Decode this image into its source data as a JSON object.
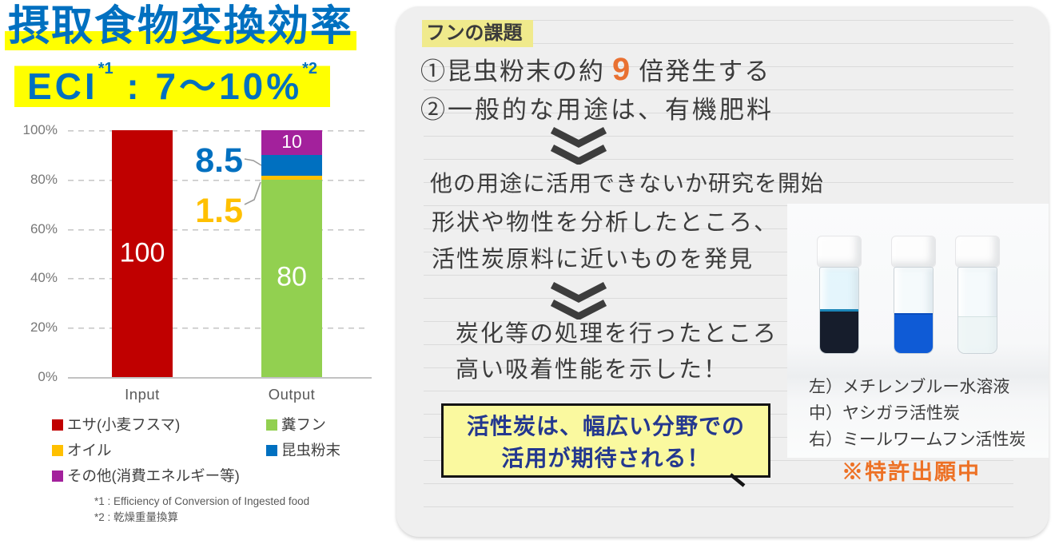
{
  "chart_data": {
    "type": "bar",
    "stacked": true,
    "title": "摂取食物変換効率",
    "subtitle": {
      "prefix": "ECI",
      "sup1": "*1",
      "sep": " : ",
      "range": "7～10%",
      "sup2": "*2"
    },
    "categories": [
      "Input",
      "Output"
    ],
    "series": [
      {
        "name": "エサ(小麦フスマ)",
        "color": "#C00000",
        "values": [
          100,
          0
        ]
      },
      {
        "name": "糞フン",
        "color": "#92D050",
        "values": [
          0,
          80
        ]
      },
      {
        "name": "オイル",
        "color": "#FFC000",
        "values": [
          0,
          1.5
        ]
      },
      {
        "name": "昆虫粉末",
        "color": "#0070C0",
        "values": [
          0,
          8.5
        ]
      },
      {
        "name": "その他(消費エネルギー等)",
        "color": "#A3219C",
        "values": [
          0,
          10
        ]
      }
    ],
    "ylim": [
      0,
      100
    ],
    "yticks": [
      "100%",
      "80%",
      "60%",
      "40%",
      "20%",
      "0%"
    ],
    "grid": "dashed horizontal",
    "legend_position": "bottom-two-columns",
    "bar_value_labels": [
      "100",
      "80",
      "10"
    ],
    "callout_labels": [
      "8.5",
      "1.5"
    ]
  },
  "legend": {
    "col1": [
      {
        "label": "エサ(小麦フスマ)",
        "color": "#C00000"
      },
      {
        "label": "オイル",
        "color": "#FFC000"
      },
      {
        "label": "その他(消費エネルギー等)",
        "color": "#A3219C"
      }
    ],
    "col2": [
      {
        "label": "糞フン",
        "color": "#92D050"
      },
      {
        "label": "昆虫粉末",
        "color": "#0070C0"
      }
    ]
  },
  "footnotes": [
    "*1 : Efficiency of Conversion of Ingested food",
    "*2 : 乾燥重量換算"
  ],
  "panel": {
    "heading": "フンの課題",
    "point1_pre": "①昆虫粉末の約",
    "point1_num": "9",
    "point1_post": "倍発生する",
    "point2": "②一般的な用途は、有機肥料",
    "step1": "他の用途に活用できないか研究を開始",
    "step2a": "形状や物性を分析したところ、",
    "step2b": "活性炭原料に近いものを発見",
    "step3a": "炭化等の処理を行ったところ",
    "step3b": "高い吸着性能を示した！",
    "conclusion_line1": "活性炭は、幅広い分野での",
    "conclusion_line2": "活用が期待される！",
    "captions": [
      "左）メチレンブルー水溶液",
      "中）ヤシガラ活性炭",
      "右）ミールワームフン活性炭"
    ],
    "patent": "※特許出願中"
  },
  "colors": {
    "title_blue": "#0070C0",
    "highlight_yellow": "#FFFF00",
    "heading_highlight": "#F0EA8C",
    "accent_orange": "#E97132",
    "patent_orange": "#ED7125",
    "conclusion_bg": "#FAF99F",
    "conclusion_text": "#24388F",
    "panel_bg": "#EFEFEF"
  }
}
